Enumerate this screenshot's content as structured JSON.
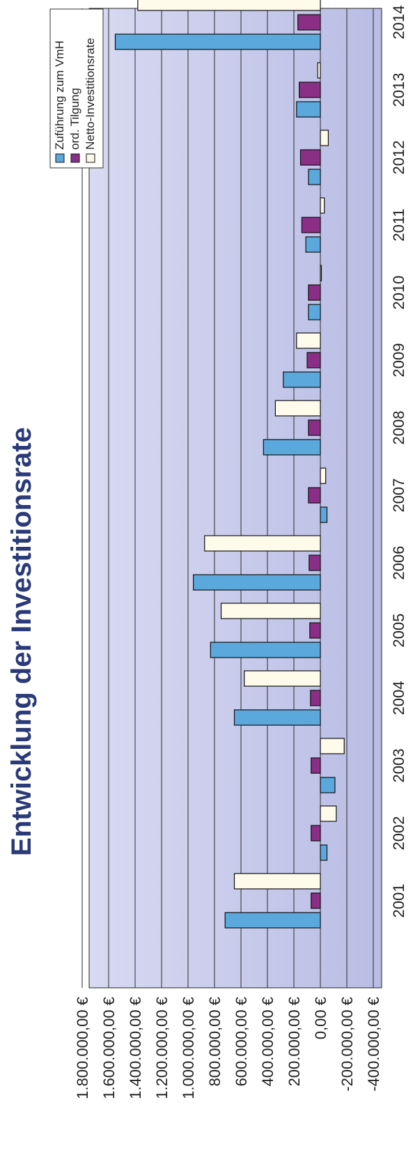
{
  "chart_data": {
    "type": "bar",
    "orientation": "rotated-90-clockwise",
    "title": "Entwicklung der Investitionsrate",
    "categories": [
      "2001",
      "2002",
      "2003",
      "2004",
      "2005",
      "2006",
      "2007",
      "2008",
      "2009",
      "2010",
      "2011",
      "2012",
      "2013",
      "2014"
    ],
    "series": [
      {
        "name": "Zuführung zum VmH",
        "color": "#5aa8dc",
        "values": [
          720000,
          -50000,
          -110000,
          650000,
          830000,
          960000,
          -50000,
          430000,
          280000,
          90000,
          110000,
          90000,
          180000,
          1550000
        ]
      },
      {
        "name": "ord. Tilgung",
        "color": "#8b2f86",
        "values": [
          70000,
          70000,
          70000,
          75000,
          80000,
          85000,
          90000,
          90000,
          100000,
          90000,
          140000,
          150000,
          160000,
          170000
        ]
      },
      {
        "name": "Netto-Investitionsrate",
        "color": "#fffbea",
        "values": [
          650000,
          -120000,
          -180000,
          575000,
          750000,
          875000,
          -40000,
          340000,
          180000,
          0,
          -30000,
          -60000,
          20000,
          1380000
        ]
      }
    ],
    "y_ticks": [
      "1.800.000,00 €",
      "1.600.000,00 €",
      "1.400.000,00 €",
      "1.200.000,00 €",
      "1.000.000,00 €",
      "800.000,00 €",
      "600.000,00 €",
      "400.000,00 €",
      "200.000,00 €",
      "0,00 €",
      "-200.000,00 €",
      "-400.000,00 €"
    ],
    "y_tick_values": [
      1800000,
      1600000,
      1400000,
      1200000,
      1000000,
      800000,
      600000,
      400000,
      200000,
      0,
      -200000,
      -400000
    ],
    "ylim": [
      -400000,
      1800000
    ],
    "grid": true,
    "legend_position": "top-right"
  },
  "colors": {
    "plot_background": "#c9ccec",
    "gridline": "#2a2a2a",
    "title": "#2a3a78"
  }
}
